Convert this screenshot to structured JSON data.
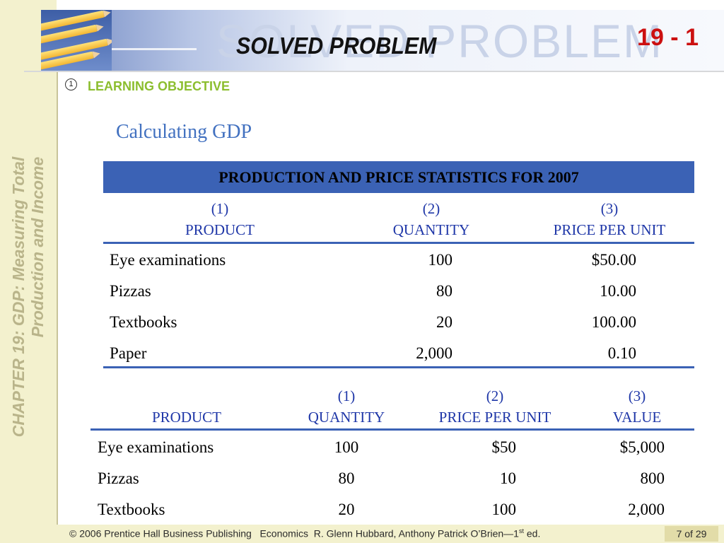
{
  "sidebar": {
    "chapter_line1": "CHAPTER 19:  GDP:  Measuring Total",
    "chapter_line2": "Production and Income"
  },
  "header": {
    "watermark": "SOLVED PROBLEM",
    "title": "SOLVED PROBLEM",
    "number": "19 - 1"
  },
  "learning_objective": {
    "number": "1",
    "label": "LEARNING OBJECTIVE"
  },
  "heading": "Calculating GDP",
  "table1": {
    "title": "PRODUCTION AND PRICE STATISTICS FOR 2007",
    "columns": [
      {
        "num": "(1)",
        "label": "PRODUCT"
      },
      {
        "num": "(2)",
        "label": "QUANTITY"
      },
      {
        "num": "(3)",
        "label": "PRICE PER UNIT"
      }
    ],
    "rows": [
      {
        "product": "Eye examinations",
        "quantity": "100",
        "price": "$50.00"
      },
      {
        "product": "Pizzas",
        "quantity": "80",
        "price": "10.00"
      },
      {
        "product": "Textbooks",
        "quantity": "20",
        "price": "100.00"
      },
      {
        "product": "Paper",
        "quantity": "2,000",
        "price": "0.10"
      }
    ]
  },
  "table2": {
    "columns": [
      {
        "num": "",
        "label": "PRODUCT"
      },
      {
        "num": "(1)",
        "label": "QUANTITY"
      },
      {
        "num": "(2)",
        "label": "PRICE PER UNIT"
      },
      {
        "num": "(3)",
        "label": "VALUE"
      }
    ],
    "rows": [
      {
        "product": "Eye examinations",
        "quantity": "100",
        "price": "$50",
        "value": "$5,000"
      },
      {
        "product": "Pizzas",
        "quantity": "80",
        "price": "10",
        "value": "800"
      },
      {
        "product": "Textbooks",
        "quantity": "20",
        "price": "100",
        "value": "2,000"
      }
    ]
  },
  "footer": {
    "copyright": "© 2006 Prentice Hall Business Publishing",
    "book": "Economics",
    "authors": "R. Glenn Hubbard, Anthony Patrick O’Brien—1",
    "edition_sup": "st",
    "edition_tail": " ed.",
    "page": "7 of 29"
  },
  "colors": {
    "accent_blue": "#3b62b5",
    "header_text_blue": "#1f37a8",
    "heading_blue": "#4271c0",
    "objective_green": "#8cbe2f",
    "number_red": "#cc1010",
    "sidebar_cream": "#f3f1ce"
  }
}
